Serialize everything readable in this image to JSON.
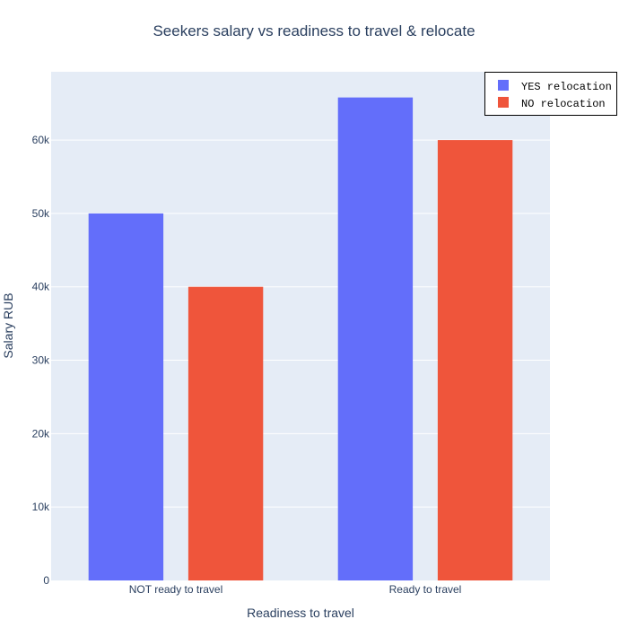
{
  "chart_data": {
    "type": "bar",
    "title": "Seekers salary vs readiness to travel & relocate",
    "xlabel": "Readiness to travel",
    "ylabel": "Salary RUB",
    "categories": [
      "NOT ready to travel",
      "Ready to travel"
    ],
    "series": [
      {
        "name": "YES relocation",
        "values": [
          50000,
          65800
        ],
        "color": "#636efa"
      },
      {
        "name": "NO relocation",
        "values": [
          40000,
          60000
        ],
        "color": "#ef553b"
      }
    ],
    "ylim": [
      0,
      69300
    ],
    "yticks": [
      0,
      10000,
      20000,
      30000,
      40000,
      50000,
      60000
    ],
    "ytick_labels": [
      "0",
      "10k",
      "20k",
      "30k",
      "40k",
      "50k",
      "60k"
    ],
    "grid": true,
    "legend_position": "top-right",
    "plot_background": "#e5ecf6"
  }
}
